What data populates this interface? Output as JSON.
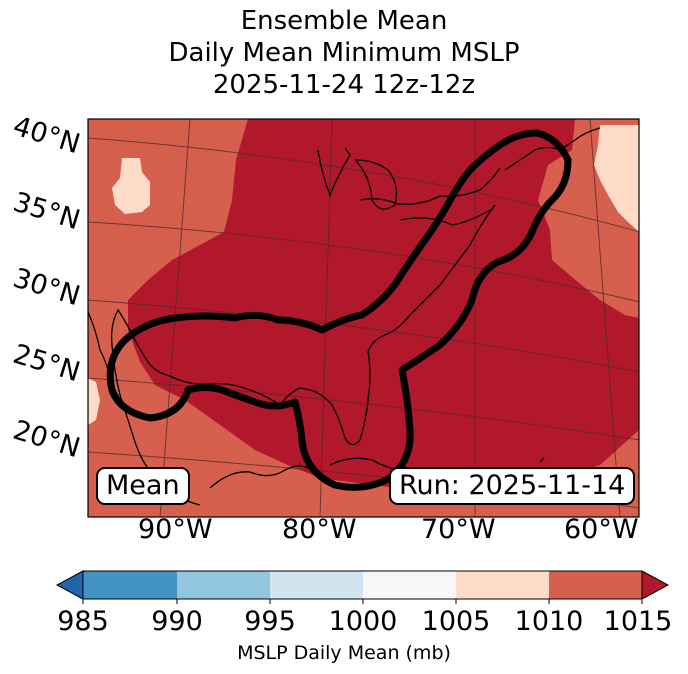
{
  "title": {
    "line1": "Ensemble Mean",
    "line2": "Daily Mean Minimum MSLP",
    "line3": "2025-11-24 12z-12z"
  },
  "map": {
    "lat_labels": [
      "40°N",
      "35°N",
      "30°N",
      "25°N",
      "20°N"
    ],
    "lon_labels": [
      "90°W",
      "80°W",
      "70°W",
      "60°W"
    ],
    "mean_label": "Mean",
    "run_label": "Run: 2025-11-14",
    "colors": {
      "c1010_1015": "#d6604d",
      "c1015_plus": "#b2182b",
      "c1005_1010": "#fddbc7",
      "contour": "#000000"
    }
  },
  "colorbar": {
    "ticks": [
      "985",
      "990",
      "995",
      "1000",
      "1005",
      "1010",
      "1015"
    ],
    "label": "MSLP Daily Mean (mb)",
    "colors": [
      "#2166ac",
      "#4393c3",
      "#92c5de",
      "#d1e5f0",
      "#f7f7f7",
      "#fddbc7",
      "#d6604d",
      "#b2182b"
    ]
  }
}
